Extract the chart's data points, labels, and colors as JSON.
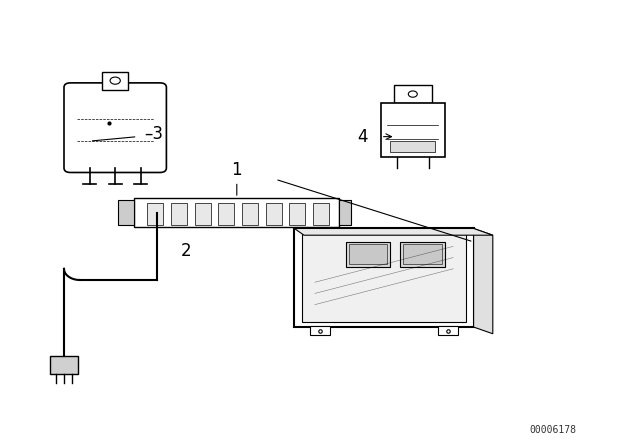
{
  "bg_color": "#ffffff",
  "fig_width": 6.4,
  "fig_height": 4.48,
  "dpi": 100,
  "watermark": "00006178",
  "label_fontsize": 12,
  "watermark_fontsize": 7,
  "watermark_color": "#333333",
  "line_color": "#000000",
  "line_width": 0.8
}
